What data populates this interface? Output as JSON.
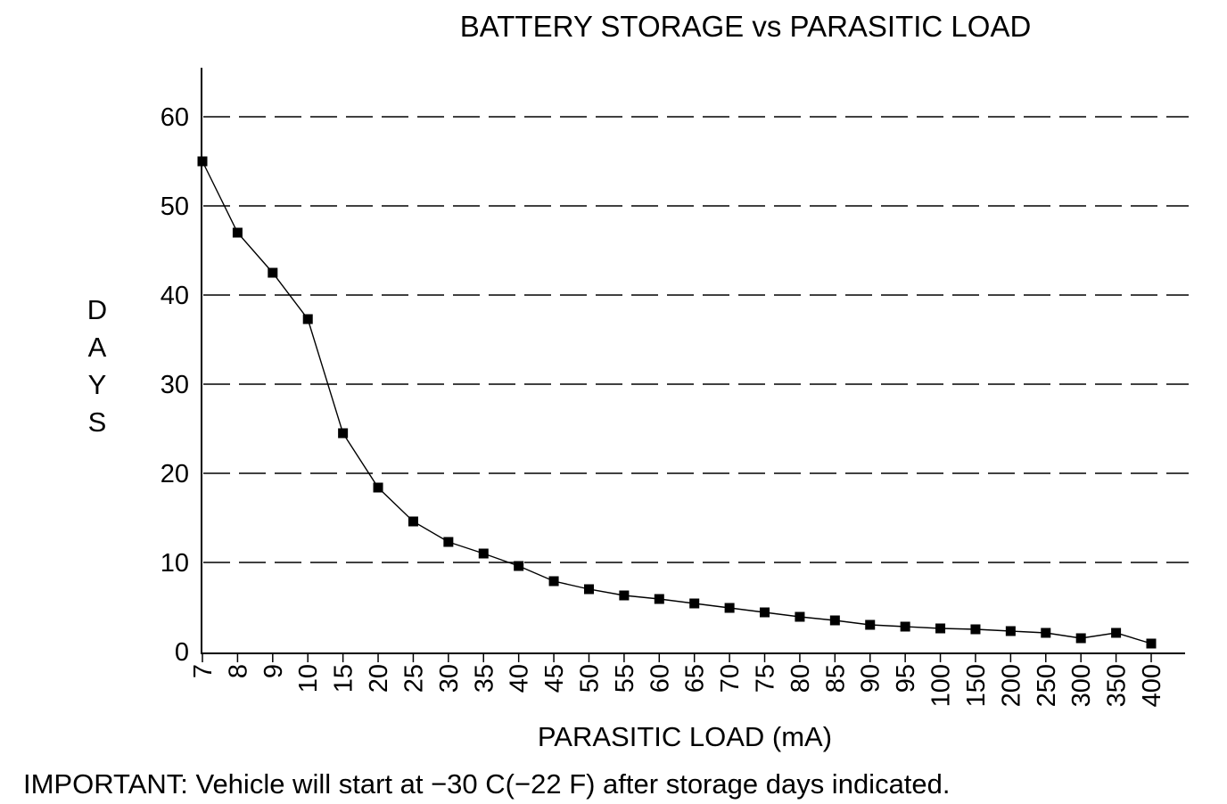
{
  "chart_data": {
    "type": "line",
    "title": "BATTERY STORAGE vs PARASITIC LOAD",
    "xlabel": "PARASITIC LOAD (mA)",
    "ylabel": "DAYS",
    "x_scale": "categorical",
    "categories": [
      "7",
      "8",
      "9",
      "10",
      "15",
      "20",
      "25",
      "30",
      "35",
      "40",
      "45",
      "50",
      "55",
      "60",
      "65",
      "70",
      "75",
      "80",
      "85",
      "90",
      "95",
      "100",
      "150",
      "200",
      "250",
      "300",
      "350",
      "400"
    ],
    "series": [
      {
        "values": [
          55,
          47,
          42.5,
          37.3,
          24.5,
          18.4,
          14.6,
          12.3,
          11,
          9.6,
          7.9,
          7,
          6.3,
          5.9,
          5.4,
          4.9,
          4.4,
          3.9,
          3.5,
          3,
          2.8,
          2.6,
          2.5,
          2.3,
          2.1,
          1.5,
          2.1,
          0.9
        ],
        "marker": "square",
        "color": "#000000"
      }
    ],
    "ylim": [
      0,
      60
    ],
    "yticks": [
      0,
      10,
      20,
      30,
      40,
      50,
      60
    ],
    "grid": "horizontal-dashed",
    "legend": "none"
  },
  "note": "IMPORTANT: Vehicle will start at −30 C(−22 F) after storage days indicated."
}
